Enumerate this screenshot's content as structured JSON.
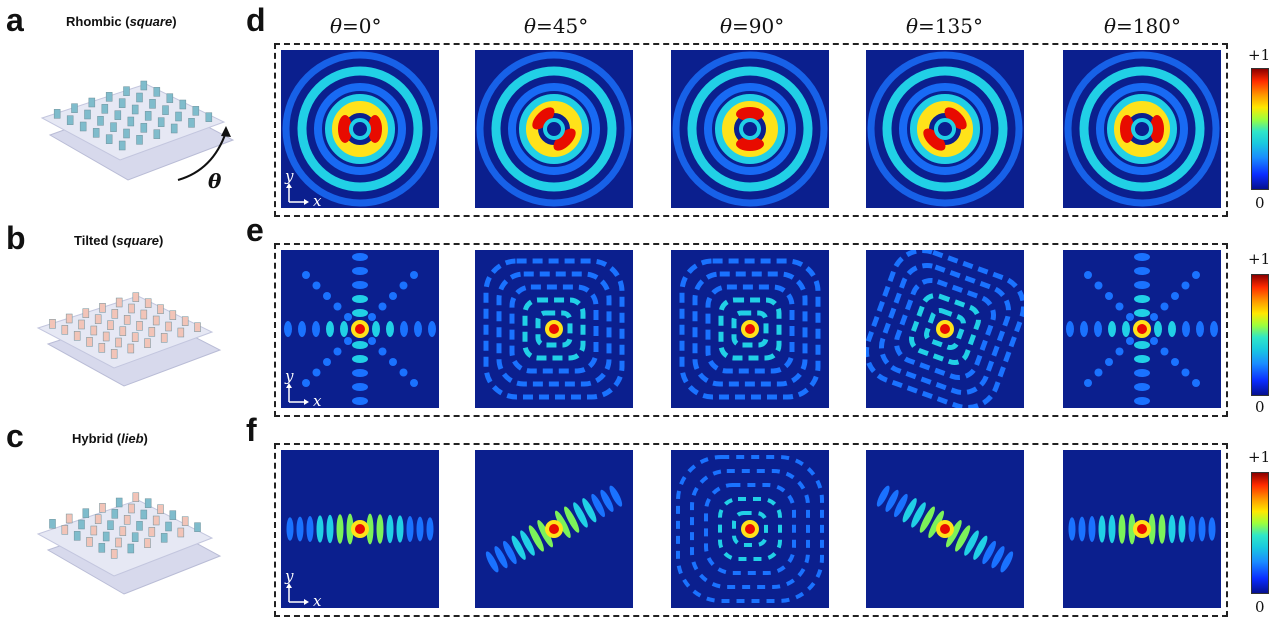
{
  "panels": {
    "a": {
      "letter": "a",
      "title_main": "Rhombic (",
      "title_em": "square",
      "title_end": ")",
      "rotation_symbol": "θ"
    },
    "b": {
      "letter": "b",
      "title_main": "Tilted (",
      "title_em": "square",
      "title_end": ")"
    },
    "c": {
      "letter": "c",
      "title_main": "Hybrid (",
      "title_em": "lieb",
      "title_end": ")"
    },
    "d": {
      "letter": "d"
    },
    "e": {
      "letter": "e"
    },
    "f": {
      "letter": "f"
    }
  },
  "columns": [
    {
      "sym": "θ",
      "val": "=0°"
    },
    {
      "sym": "θ",
      "val": "=45°"
    },
    {
      "sym": "θ",
      "val": "=90°"
    },
    {
      "sym": "θ",
      "val": "=135°"
    },
    {
      "sym": "θ",
      "val": "=180°"
    }
  ],
  "axes": {
    "y": "y",
    "x": "x"
  },
  "colorbar": {
    "max": "+1",
    "min": "0"
  },
  "colors": {
    "bg": "#0b1f8e",
    "cyan": "#21d0e6",
    "blue": "#1a72ff",
    "green": "#7cf25a",
    "yellow": "#ffe21a",
    "red": "#e80b00",
    "darkred": "#8b0000",
    "pillar_blue": "#7fbccc",
    "pillar_pink": "#f2c4b8",
    "sheet": "#e2e4f2"
  }
}
